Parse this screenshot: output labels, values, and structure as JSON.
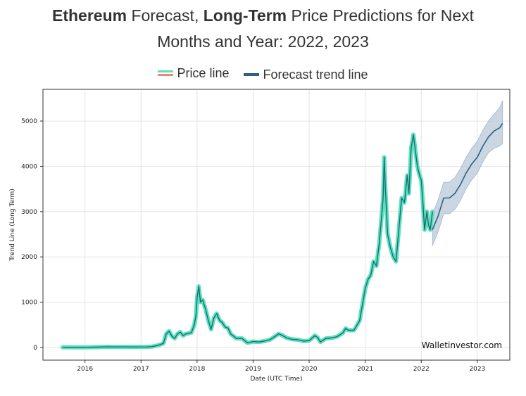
{
  "header": {
    "title_bold_1": "Ethereum",
    "title_text_1": " Forecast, ",
    "title_bold_2": "Long-Term",
    "title_text_2": " Price Predictions for Next",
    "title_line_2": "Months and Year: 2022, 2023"
  },
  "legend": {
    "price_label": "Price line",
    "forecast_label": "Forecast trend line"
  },
  "colors": {
    "price_fill": "#5ee0c0",
    "price_line": "#1a6e73",
    "price_swatch_top": "#5ee0c0",
    "price_swatch_bottom": "#f08a6b",
    "forecast_line": "#2e5f86",
    "forecast_band": "#b8cad9",
    "grid": "#e4e4e4"
  },
  "watermark": "Walletinvestor.com",
  "chart_data": {
    "type": "line",
    "xlabel": "Date (UTC Time)",
    "ylabel": "Trend Line (Long Term)",
    "xlim": [
      2015.25,
      2023.58
    ],
    "ylim": [
      -280,
      5700
    ],
    "x_ticks": [
      2016,
      2017,
      2018,
      2019,
      2020,
      2021,
      2022,
      2023
    ],
    "y_ticks": [
      0,
      1000,
      2000,
      3000,
      4000,
      5000
    ],
    "grid": true,
    "legend_position": "top",
    "series": [
      {
        "name": "Price line",
        "points": [
          [
            2015.6,
            2
          ],
          [
            2015.8,
            1
          ],
          [
            2016.0,
            1
          ],
          [
            2016.2,
            8
          ],
          [
            2016.4,
            14
          ],
          [
            2016.5,
            12
          ],
          [
            2016.7,
            12
          ],
          [
            2016.9,
            10
          ],
          [
            2017.0,
            10
          ],
          [
            2017.1,
            12
          ],
          [
            2017.2,
            20
          ],
          [
            2017.3,
            45
          ],
          [
            2017.4,
            90
          ],
          [
            2017.45,
            300
          ],
          [
            2017.5,
            360
          ],
          [
            2017.55,
            250
          ],
          [
            2017.6,
            200
          ],
          [
            2017.65,
            300
          ],
          [
            2017.7,
            340
          ],
          [
            2017.75,
            260
          ],
          [
            2017.8,
            300
          ],
          [
            2017.85,
            310
          ],
          [
            2017.9,
            330
          ],
          [
            2017.95,
            500
          ],
          [
            2017.98,
            700
          ],
          [
            2018.0,
            1100
          ],
          [
            2018.03,
            1350
          ],
          [
            2018.06,
            1000
          ],
          [
            2018.1,
            1050
          ],
          [
            2018.15,
            850
          ],
          [
            2018.2,
            600
          ],
          [
            2018.25,
            400
          ],
          [
            2018.3,
            650
          ],
          [
            2018.35,
            750
          ],
          [
            2018.4,
            600
          ],
          [
            2018.45,
            550
          ],
          [
            2018.5,
            450
          ],
          [
            2018.55,
            430
          ],
          [
            2018.6,
            300
          ],
          [
            2018.7,
            200
          ],
          [
            2018.8,
            200
          ],
          [
            2018.9,
            100
          ],
          [
            2019.0,
            130
          ],
          [
            2019.1,
            120
          ],
          [
            2019.2,
            140
          ],
          [
            2019.3,
            170
          ],
          [
            2019.4,
            250
          ],
          [
            2019.45,
            300
          ],
          [
            2019.5,
            280
          ],
          [
            2019.6,
            210
          ],
          [
            2019.7,
            180
          ],
          [
            2019.8,
            170
          ],
          [
            2019.9,
            140
          ],
          [
            2020.0,
            150
          ],
          [
            2020.1,
            260
          ],
          [
            2020.15,
            220
          ],
          [
            2020.2,
            120
          ],
          [
            2020.3,
            200
          ],
          [
            2020.4,
            210
          ],
          [
            2020.5,
            240
          ],
          [
            2020.6,
            320
          ],
          [
            2020.65,
            420
          ],
          [
            2020.7,
            380
          ],
          [
            2020.8,
            380
          ],
          [
            2020.9,
            590
          ],
          [
            2021.0,
            1300
          ],
          [
            2021.05,
            1500
          ],
          [
            2021.1,
            1600
          ],
          [
            2021.15,
            1900
          ],
          [
            2021.2,
            1800
          ],
          [
            2021.25,
            2300
          ],
          [
            2021.28,
            2700
          ],
          [
            2021.32,
            3300
          ],
          [
            2021.34,
            4200
          ],
          [
            2021.36,
            3500
          ],
          [
            2021.4,
            2500
          ],
          [
            2021.45,
            2200
          ],
          [
            2021.5,
            2000
          ],
          [
            2021.55,
            1900
          ],
          [
            2021.6,
            2600
          ],
          [
            2021.65,
            3300
          ],
          [
            2021.7,
            3200
          ],
          [
            2021.75,
            3800
          ],
          [
            2021.78,
            3400
          ],
          [
            2021.82,
            4400
          ],
          [
            2021.86,
            4700
          ],
          [
            2021.9,
            4300
          ],
          [
            2021.93,
            4000
          ],
          [
            2021.97,
            3800
          ],
          [
            2022.0,
            3700
          ],
          [
            2022.03,
            3200
          ],
          [
            2022.06,
            2600
          ],
          [
            2022.1,
            3000
          ],
          [
            2022.13,
            2700
          ],
          [
            2022.16,
            2600
          ],
          [
            2022.2,
            3000
          ]
        ]
      },
      {
        "name": "Forecast trend line",
        "points": [
          [
            2022.2,
            2600
          ],
          [
            2022.3,
            2900
          ],
          [
            2022.4,
            3300
          ],
          [
            2022.5,
            3300
          ],
          [
            2022.6,
            3400
          ],
          [
            2022.7,
            3600
          ],
          [
            2022.8,
            3850
          ],
          [
            2022.9,
            4050
          ],
          [
            2023.0,
            4200
          ],
          [
            2023.1,
            4450
          ],
          [
            2023.2,
            4650
          ],
          [
            2023.3,
            4780
          ],
          [
            2023.4,
            4850
          ],
          [
            2023.45,
            4950
          ]
        ],
        "band_low": [
          2250,
          2550,
          2950,
          2950,
          3050,
          3250,
          3500,
          3700,
          3850,
          4100,
          4300,
          4400,
          4450,
          4500
        ],
        "band_high": [
          2950,
          3250,
          3650,
          3650,
          3750,
          3950,
          4200,
          4400,
          4550,
          4800,
          5000,
          5150,
          5300,
          5450
        ]
      }
    ]
  }
}
